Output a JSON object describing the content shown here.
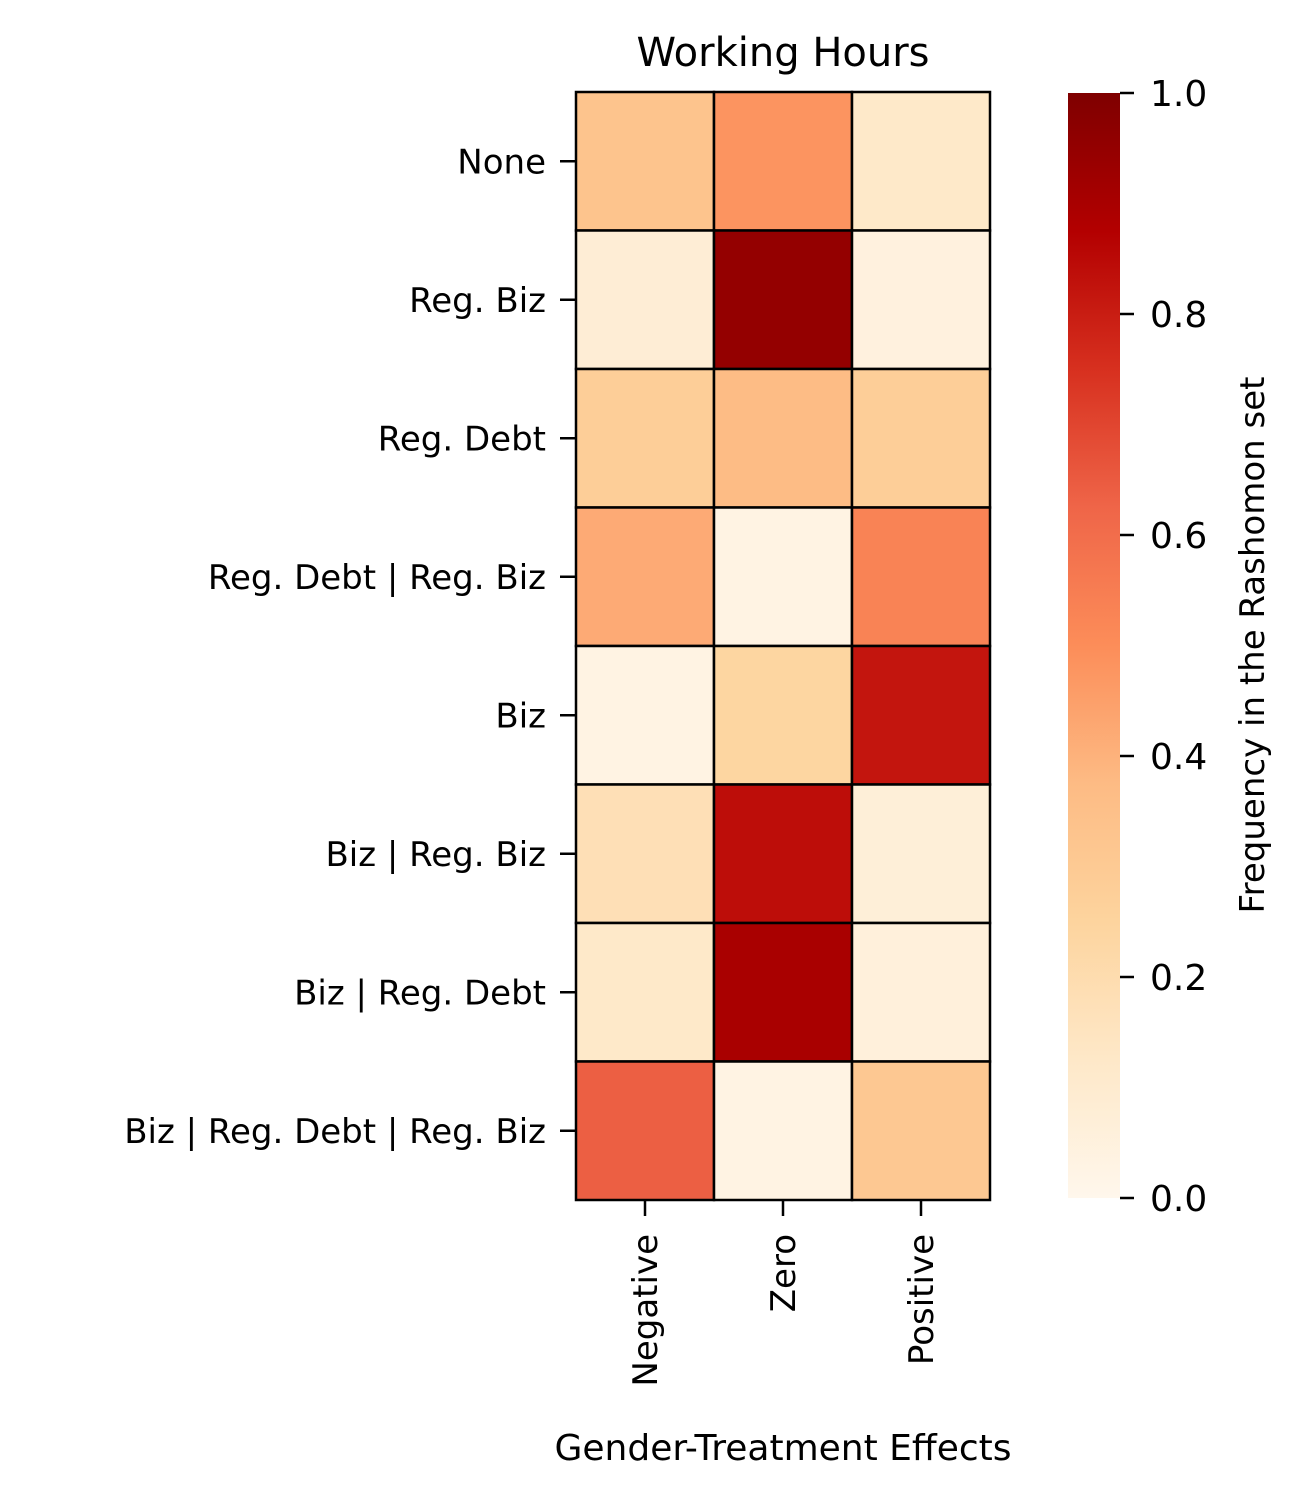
{
  "chart_data": {
    "type": "heatmap",
    "title": "Working Hours",
    "xlabel": "Gender-Treatment Effects",
    "ylabel": "",
    "x_categories": [
      "Negative",
      "Zero",
      "Positive"
    ],
    "y_categories": [
      "None",
      "Reg. Biz",
      "Reg. Debt",
      "Reg. Debt | Reg. Biz",
      "Biz",
      "Biz | Reg. Biz",
      "Biz | Reg. Debt",
      "Biz | Reg. Debt | Reg. Biz"
    ],
    "values": [
      [
        0.33,
        0.48,
        0.12
      ],
      [
        0.08,
        0.95,
        0.05
      ],
      [
        0.28,
        0.37,
        0.28
      ],
      [
        0.42,
        0.03,
        0.53
      ],
      [
        0.03,
        0.24,
        0.82
      ],
      [
        0.18,
        0.84,
        0.07
      ],
      [
        0.12,
        0.9,
        0.06
      ],
      [
        0.64,
        0.03,
        0.31
      ]
    ],
    "colormap": "OrRd",
    "color_stops": [
      "#fff7ec",
      "#fee8c8",
      "#fdd49e",
      "#fdbb84",
      "#fc8d59",
      "#ef6548",
      "#d7301f",
      "#b30000",
      "#7f0000"
    ],
    "colorbar": {
      "label": "Frequency in the Rashomon set",
      "range": [
        0.0,
        1.0
      ],
      "ticks": [
        "0.0",
        "0.2",
        "0.4",
        "0.6",
        "0.8",
        "1.0"
      ]
    },
    "cell_border_color": "#000000"
  }
}
